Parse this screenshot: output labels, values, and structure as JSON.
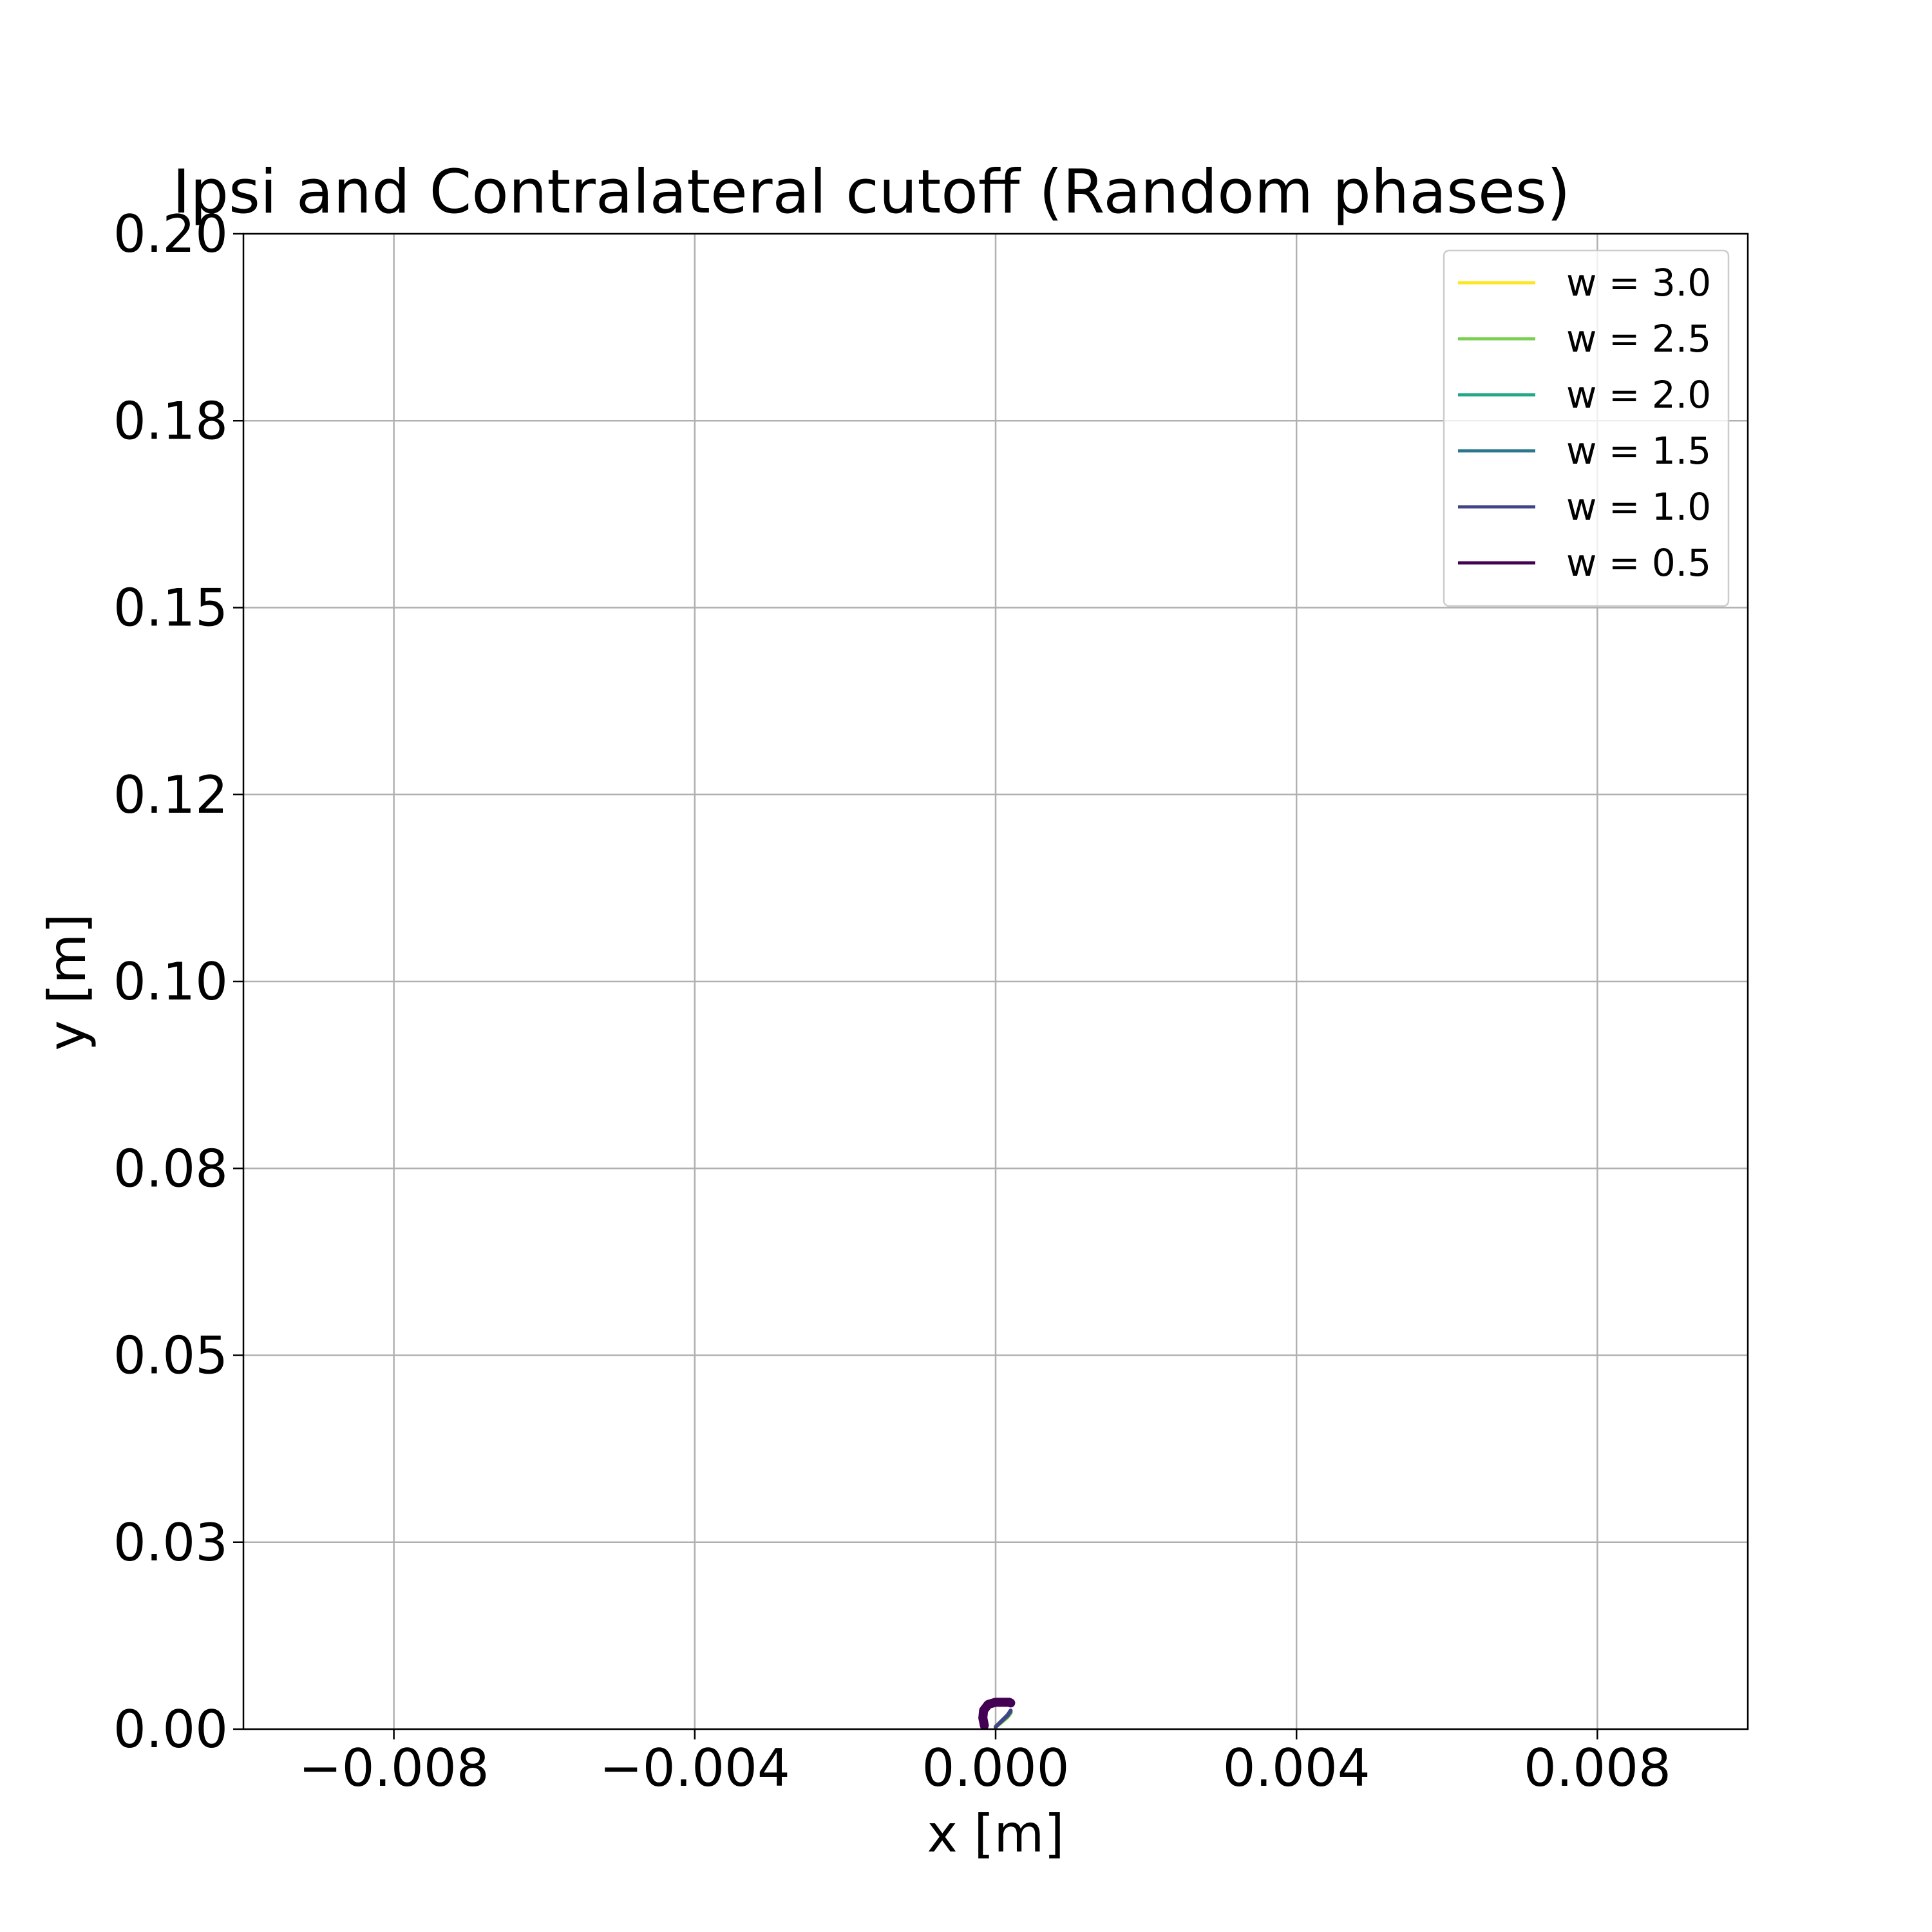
{
  "chart_data": {
    "type": "line",
    "title": "Ipsi and Contralateral cutoff (Random phases)",
    "xlabel": "x [m]",
    "ylabel": "y [m]",
    "xlim": [
      -0.01,
      0.01
    ],
    "ylim": [
      0.0,
      0.2
    ],
    "xticks": [
      -0.008,
      -0.004,
      0.0,
      0.004,
      0.008
    ],
    "xtick_labels": [
      "−0.008",
      "−0.004",
      "0.000",
      "0.004",
      "0.008"
    ],
    "yticks": [
      0.0,
      0.025,
      0.05,
      0.075,
      0.1,
      0.125,
      0.15,
      0.175,
      0.2
    ],
    "ytick_labels": [
      "0.00",
      "0.03",
      "0.05",
      "0.08",
      "0.10",
      "0.12",
      "0.15",
      "0.18",
      "0.20"
    ],
    "grid": true,
    "legend_position": "top-right",
    "series": [
      {
        "name": "w = 3.0",
        "color": "#fde725",
        "x": [
          0.0,
          8e-05,
          0.00015,
          0.0002
        ],
        "y": [
          0.0003,
          0.0009,
          0.0015,
          0.0021
        ]
      },
      {
        "name": "w = 2.5",
        "color": "#7ad151",
        "x": [
          0.0,
          8e-05,
          0.00015,
          0.0002
        ],
        "y": [
          0.0003,
          0.001,
          0.0016,
          0.0022
        ]
      },
      {
        "name": "w = 2.0",
        "color": "#22a884",
        "x": [
          0.0,
          8e-05,
          0.00016,
          0.0002
        ],
        "y": [
          0.0003,
          0.001,
          0.0017,
          0.0023
        ]
      },
      {
        "name": "w = 1.5",
        "color": "#2a788e",
        "x": [
          0.0,
          8e-05,
          0.00016,
          0.0002
        ],
        "y": [
          0.0003,
          0.0011,
          0.0018,
          0.0024
        ]
      },
      {
        "name": "w = 1.0",
        "color": "#414487",
        "x": [
          0.0,
          8e-05,
          0.00016,
          0.0002
        ],
        "y": [
          0.0003,
          0.0011,
          0.0019,
          0.0025
        ]
      },
      {
        "name": "w = 0.5",
        "color": "#440154",
        "x": [
          -0.00015,
          -0.00017,
          -0.00016,
          -0.0001,
          0.0,
          0.0001,
          0.00018,
          0.0002
        ],
        "y": [
          0.0005,
          0.0015,
          0.0025,
          0.0033,
          0.0036,
          0.0036,
          0.0036,
          0.0035
        ]
      }
    ]
  }
}
